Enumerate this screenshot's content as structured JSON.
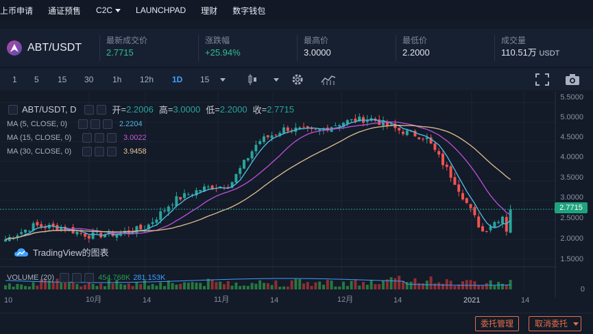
{
  "nav": {
    "items": [
      "上币申请",
      "通证预售",
      "C2C",
      "LAUNCHPAD",
      "理财",
      "数字钱包"
    ]
  },
  "ticker": {
    "pair": "ABT/USDT",
    "stats": [
      {
        "label": "最新成交价",
        "value": "2.7715",
        "up": true
      },
      {
        "label": "涨跌幅",
        "value": "+25.94%",
        "up": true
      },
      {
        "label": "最高价",
        "value": "3.0000",
        "up": false
      },
      {
        "label": "最低价",
        "value": "2.2000",
        "up": false
      },
      {
        "label": "成交量",
        "value": "110.51万",
        "unit": "USDT",
        "up": false
      }
    ]
  },
  "toolbar": {
    "intervals": [
      "1",
      "5",
      "15",
      "30",
      "1h",
      "12h",
      "1D",
      "15"
    ],
    "active": "1D"
  },
  "chart": {
    "legend": {
      "symbol": "ABT/USDT, D",
      "open_label": "开",
      "open": "2.2006",
      "high_label": "高",
      "high": "3.0000",
      "low_label": "低",
      "low": "2.2000",
      "close_label": "收",
      "close": "2.7715"
    },
    "ma": [
      {
        "label": "MA (5, CLOSE, 0)",
        "value": "2.2204",
        "color": "#4fb8e0"
      },
      {
        "label": "MA (15, CLOSE, 0)",
        "value": "3.0022",
        "color": "#b34fd0"
      },
      {
        "label": "MA (30, CLOSE, 0)",
        "value": "3.9458",
        "color": "#d7b88c"
      }
    ],
    "last_price": "2.7715",
    "brand": "TradingView的图表",
    "volume": {
      "label": "VOLUME (20)",
      "v1": "454.768K",
      "v2": "281.153K"
    },
    "y_ticks": [
      "5.5000",
      "5.0000",
      "4.5000",
      "4.0000",
      "3.5000",
      "3.0000",
      "2.5000",
      "2.0000",
      "1.5000"
    ],
    "vol_tick": "0",
    "x_ticks": [
      "10",
      "10月",
      "14",
      "11月",
      "14",
      "12月",
      "14",
      "2021",
      "14"
    ],
    "colors": {
      "up": "#26a69a",
      "down": "#ef5350",
      "vol_up": "#2a8a44",
      "vol_down": "#a33236"
    }
  },
  "chart_data": {
    "type": "candlestick",
    "title": "ABT/USDT, D",
    "ylim": [
      1.3,
      5.6
    ],
    "close_series_sample": [
      2.0,
      2.35,
      2.3,
      2.1,
      2.15,
      2.3,
      3.0,
      3.3,
      3.4,
      4.5,
      4.85,
      4.75,
      5.0,
      5.1,
      4.8,
      4.6,
      3.5,
      2.2,
      2.77
    ],
    "ma": [
      {
        "name": "MA (5, CLOSE, 0)",
        "last": 2.2204
      },
      {
        "name": "MA (15, CLOSE, 0)",
        "last": 3.0022
      },
      {
        "name": "MA (30, CLOSE, 0)",
        "last": 3.9458
      }
    ]
  },
  "bottom": {
    "orders": "委托管理",
    "cancel": "取消委托"
  }
}
